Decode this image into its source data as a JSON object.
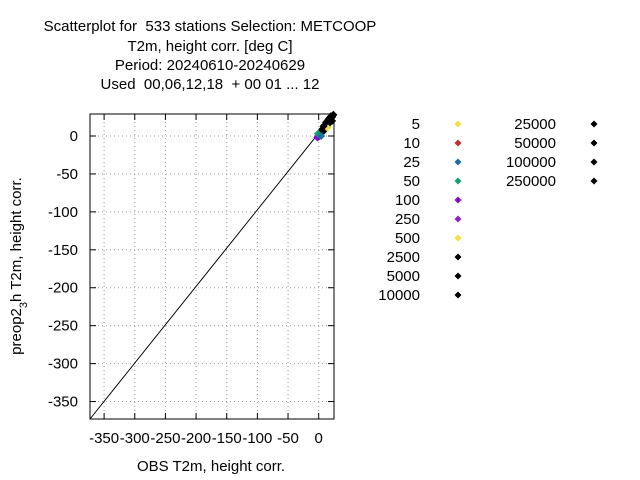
{
  "chart_data": {
    "type": "scatter",
    "title_lines": [
      "Scatterplot for  533 stations Selection: METCOOP",
      "T2m, height corr. [deg C]",
      "Period: 20240610-20240629",
      "Used  00,06,12,18  + 00 01 ... 12"
    ],
    "xlabel": "OBS T2m, height corr.",
    "ylabel_main": "preop2",
    "ylabel_sub": "3",
    "ylabel_rest": "h T2m, height corr.",
    "xlim": [
      -373,
      25
    ],
    "ylim": [
      -373,
      29
    ],
    "x_ticks": [
      {
        "value": -350,
        "label": "-350"
      },
      {
        "value": -300,
        "label": "-300"
      },
      {
        "value": -250,
        "label": "-250"
      },
      {
        "value": -200,
        "label": "-200"
      },
      {
        "value": -150,
        "label": "-150"
      },
      {
        "value": -100,
        "label": "-100"
      },
      {
        "value": -50,
        "label": "-50"
      },
      {
        "value": 0,
        "label": "0"
      }
    ],
    "y_ticks": [
      {
        "value": 0,
        "label": "0"
      },
      {
        "value": -50,
        "label": "-50"
      },
      {
        "value": -100,
        "label": "-100"
      },
      {
        "value": -150,
        "label": "-150"
      },
      {
        "value": -200,
        "label": "-200"
      },
      {
        "value": -250,
        "label": "-250"
      },
      {
        "value": -300,
        "label": "-300"
      },
      {
        "value": -350,
        "label": "-350"
      }
    ],
    "grid": true,
    "reference_line": {
      "from": [
        -373,
        -373
      ],
      "to": [
        25,
        29
      ]
    },
    "legend_placement": "right",
    "legend": [
      {
        "label": "5",
        "color": "#f0e040"
      },
      {
        "label": "10",
        "color": "#c03030"
      },
      {
        "label": "25",
        "color": "#1a6fa0"
      },
      {
        "label": "50",
        "color": "#10a070"
      },
      {
        "label": "100",
        "color": "#8010c8"
      },
      {
        "label": "250",
        "color": "#9020d0"
      },
      {
        "label": "500",
        "color": "#f0e040"
      },
      {
        "label": "2500",
        "color": "#000000"
      },
      {
        "label": "5000",
        "color": "#000000"
      },
      {
        "label": "10000",
        "color": "#000000"
      },
      {
        "label": "25000",
        "color": "#000000"
      },
      {
        "label": "50000",
        "color": "#000000"
      },
      {
        "label": "100000",
        "color": "#000000"
      },
      {
        "label": "250000",
        "color": "#000000"
      }
    ],
    "points": [
      {
        "x": -2,
        "y": -2,
        "c": 4
      },
      {
        "x": -1,
        "y": 0,
        "c": 5
      },
      {
        "x": 0,
        "y": -1,
        "c": 4
      },
      {
        "x": 1,
        "y": 2,
        "c": 3
      },
      {
        "x": 2,
        "y": 1,
        "c": 2
      },
      {
        "x": 0,
        "y": 3,
        "c": 7
      },
      {
        "x": 3,
        "y": 4,
        "c": 8
      },
      {
        "x": 4,
        "y": 3,
        "c": 9
      },
      {
        "x": 5,
        "y": 6,
        "c": 0
      },
      {
        "x": 6,
        "y": 5,
        "c": 6
      },
      {
        "x": 7,
        "y": 9,
        "c": 7
      },
      {
        "x": 8,
        "y": 7,
        "c": 8
      },
      {
        "x": 9,
        "y": 10,
        "c": 9
      },
      {
        "x": 10,
        "y": 12,
        "c": 0
      },
      {
        "x": 11,
        "y": 10,
        "c": 7
      },
      {
        "x": 12,
        "y": 14,
        "c": 8
      },
      {
        "x": 13,
        "y": 12,
        "c": 9
      },
      {
        "x": 14,
        "y": 16,
        "c": 1
      },
      {
        "x": 15,
        "y": 15,
        "c": 7
      },
      {
        "x": 16,
        "y": 18,
        "c": 8
      },
      {
        "x": 17,
        "y": 17,
        "c": 10
      },
      {
        "x": 18,
        "y": 20,
        "c": 7
      },
      {
        "x": 19,
        "y": 22,
        "c": 8
      },
      {
        "x": 20,
        "y": 21,
        "c": 9
      },
      {
        "x": 21,
        "y": 24,
        "c": 0
      },
      {
        "x": 22,
        "y": 25,
        "c": 7
      },
      {
        "x": 23,
        "y": 27,
        "c": 8
      },
      {
        "x": 24,
        "y": 28,
        "c": 9
      },
      {
        "x": 2,
        "y": 5,
        "c": 7
      },
      {
        "x": 6,
        "y": 9,
        "c": 8
      },
      {
        "x": 10,
        "y": 8,
        "c": 9
      },
      {
        "x": 14,
        "y": 11,
        "c": 0
      },
      {
        "x": 18,
        "y": 24,
        "c": 7
      },
      {
        "x": 22,
        "y": 20,
        "c": 8
      },
      {
        "x": 12,
        "y": 18,
        "c": 9
      },
      {
        "x": 8,
        "y": 13,
        "c": 7
      },
      {
        "x": 16,
        "y": 22,
        "c": 8
      },
      {
        "x": 20,
        "y": 26,
        "c": 7
      },
      {
        "x": -1,
        "y": 3,
        "c": 3
      },
      {
        "x": 4,
        "y": 0,
        "c": 2
      }
    ]
  }
}
